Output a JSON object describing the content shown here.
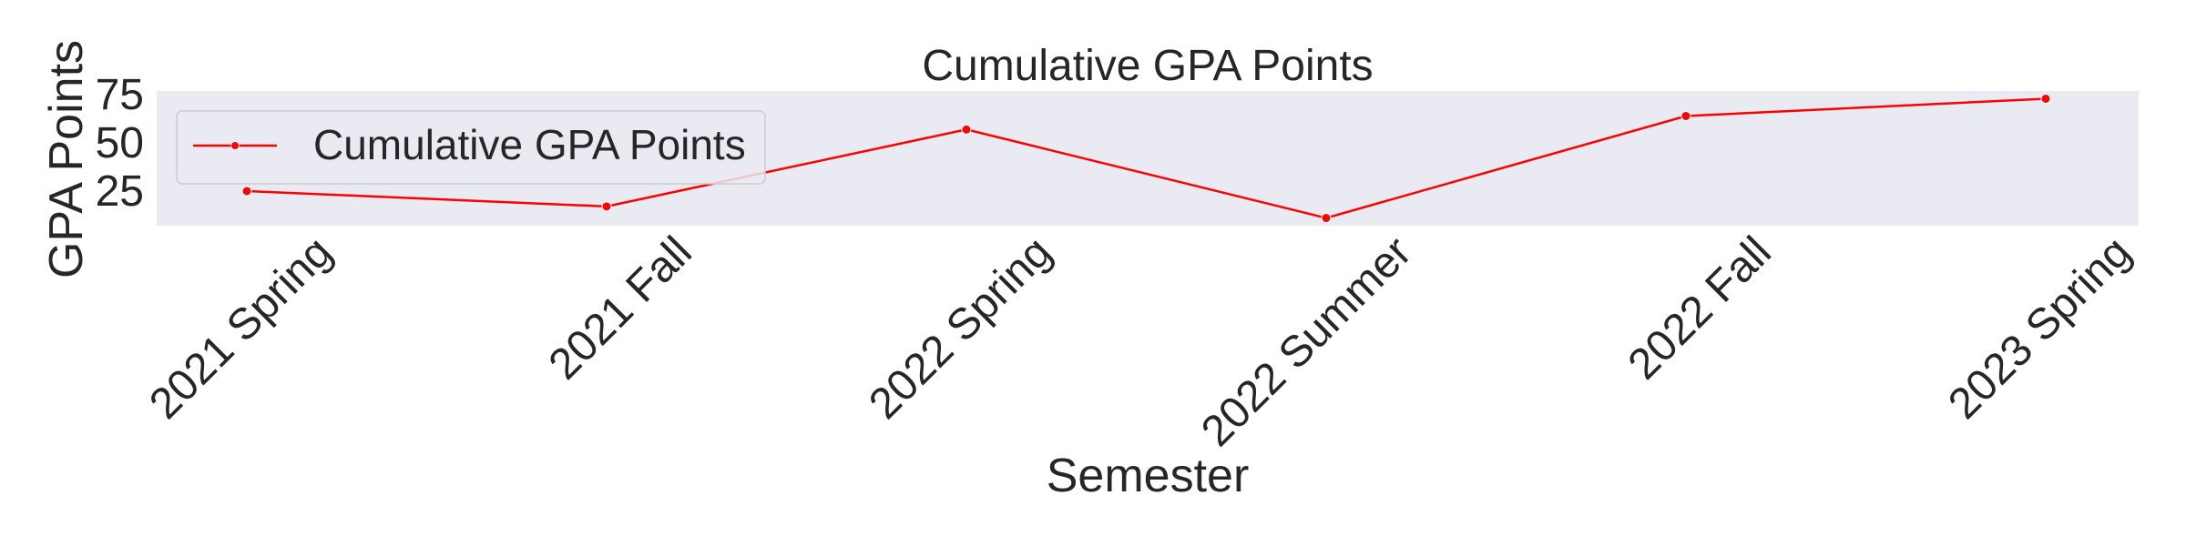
{
  "chart_data": {
    "type": "line",
    "title": "Cumulative GPA Points",
    "xlabel": "Semester",
    "ylabel": "GPA Points",
    "categories": [
      "2021 Spring",
      "2021 Fall",
      "2022 Spring",
      "2022 Summer",
      "2022 Fall",
      "2023 Spring"
    ],
    "series": [
      {
        "name": "Cumulative GPA Points",
        "values": [
          25,
          17,
          57,
          11,
          64,
          73
        ],
        "color": "#ff0000",
        "marker": "circle"
      }
    ],
    "yticks": [
      25,
      50,
      75
    ],
    "ylim": [
      7,
      77
    ],
    "grid": false,
    "legend_position": "upper-left",
    "plot_background": "#eaeaf2",
    "text_color": "#262626"
  }
}
